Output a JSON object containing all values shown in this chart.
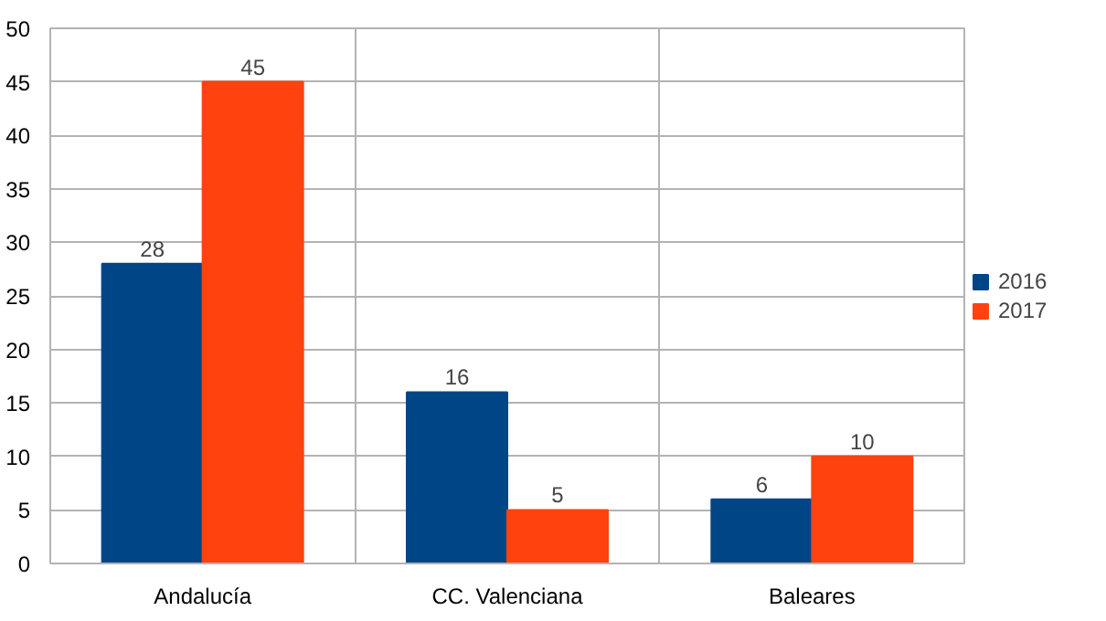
{
  "chart_data": {
    "type": "bar",
    "categories": [
      "Andalucía",
      "CC. Valenciana",
      "Baleares"
    ],
    "series": [
      {
        "name": "2016",
        "color": "#004586",
        "values": [
          28,
          16,
          6
        ]
      },
      {
        "name": "2017",
        "color": "#ff420e",
        "values": [
          45,
          5,
          10
        ]
      }
    ],
    "ylim": [
      0,
      50
    ],
    "yticks": [
      0,
      5,
      10,
      15,
      20,
      25,
      30,
      35,
      40,
      45,
      50
    ],
    "grid": true,
    "legend": "right",
    "data_labels": true
  }
}
